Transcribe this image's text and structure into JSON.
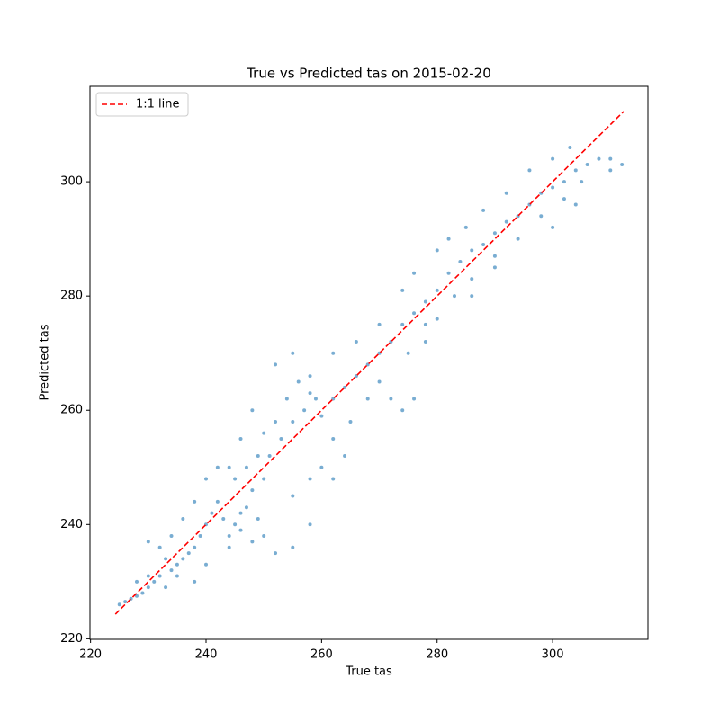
{
  "chart_data": {
    "type": "scatter",
    "title": "True vs Predicted tas on 2015-02-20",
    "xlabel": "True tas",
    "ylabel": "Predicted tas",
    "xlim": [
      219.9,
      316.5
    ],
    "ylim": [
      219.9,
      316.7
    ],
    "xticks": [
      220,
      240,
      260,
      280,
      300
    ],
    "yticks": [
      220,
      240,
      260,
      280,
      300
    ],
    "grid": false,
    "legend": "upper left",
    "series": [
      {
        "color": "#1f77b4",
        "x": [
          225,
          226,
          227,
          228,
          229,
          230,
          231,
          232,
          233,
          234,
          235,
          236,
          237,
          238,
          239,
          240,
          241,
          242,
          243,
          244,
          245,
          246,
          247,
          248,
          249,
          250,
          244,
          242,
          240,
          238,
          236,
          234,
          232,
          230,
          246,
          248,
          250,
          252,
          254,
          256,
          258,
          245,
          247,
          249,
          251,
          253,
          255,
          257,
          259,
          260,
          262,
          264,
          266,
          268,
          270,
          272,
          274,
          276,
          278,
          280,
          282,
          284,
          286,
          288,
          290,
          292,
          294,
          296,
          298,
          300,
          302,
          304,
          306,
          308,
          310,
          312,
          255,
          258,
          260,
          262,
          265,
          268,
          270,
          272,
          275,
          278,
          280,
          283,
          286,
          290,
          294,
          298,
          302,
          305,
          280,
          282,
          285,
          288,
          292,
          296,
          300,
          303,
          252,
          255,
          258,
          262,
          266,
          270,
          274,
          276,
          262,
          264,
          258,
          255,
          252,
          248,
          250,
          244,
          246,
          240,
          238,
          235,
          233,
          228,
          230,
          274,
          276,
          278,
          286,
          290,
          300,
          310,
          304
        ],
        "values": [
          226,
          226.5,
          227,
          227.5,
          228,
          229,
          230,
          231,
          229,
          232,
          231,
          234,
          235,
          236,
          238,
          240,
          242,
          244,
          241,
          238,
          240,
          242,
          243,
          246,
          241,
          248,
          250,
          250,
          248,
          244,
          241,
          238,
          236,
          237,
          255,
          260,
          256,
          258,
          262,
          265,
          263,
          248,
          250,
          252,
          252,
          255,
          258,
          260,
          262,
          259,
          262,
          264,
          266,
          268,
          270,
          272,
          275,
          277,
          279,
          281,
          284,
          286,
          288,
          289,
          291,
          293,
          294,
          296,
          298,
          299,
          300,
          302,
          303,
          304,
          304,
          303,
          245,
          248,
          250,
          255,
          258,
          262,
          265,
          262,
          270,
          275,
          276,
          280,
          283,
          287,
          290,
          294,
          297,
          300,
          288,
          290,
          292,
          295,
          298,
          302,
          304,
          306,
          268,
          270,
          266,
          270,
          272,
          275,
          281,
          284,
          248,
          252,
          240,
          236,
          235,
          237,
          238,
          236,
          239,
          233,
          230,
          233,
          234,
          230,
          231,
          260,
          262,
          272,
          280,
          285,
          292,
          302,
          296
        ]
      },
      {
        "name": "1:1 line",
        "color": "#ff0000",
        "line_style": "dashed",
        "x": [
          224.3,
          312.3
        ],
        "values": [
          224.3,
          312.3
        ]
      }
    ]
  }
}
